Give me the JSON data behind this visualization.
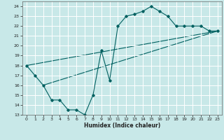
{
  "title": "",
  "xlabel": "Humidex (Indice chaleur)",
  "xlim": [
    -0.5,
    23.5
  ],
  "ylim": [
    13,
    24.5
  ],
  "yticks": [
    13,
    14,
    15,
    16,
    17,
    18,
    19,
    20,
    21,
    22,
    23,
    24
  ],
  "xticks": [
    0,
    1,
    2,
    3,
    4,
    5,
    6,
    7,
    8,
    9,
    10,
    11,
    12,
    13,
    14,
    15,
    16,
    17,
    18,
    19,
    20,
    21,
    22,
    23
  ],
  "bg_color": "#c8e8e8",
  "grid_color": "#ffffff",
  "line_color": "#006060",
  "line1_x": [
    0,
    1,
    2,
    3,
    4,
    5,
    6,
    7,
    8,
    9,
    10,
    11,
    12,
    13,
    14,
    15,
    16,
    17,
    18,
    19,
    20,
    21,
    22,
    23
  ],
  "line1_y": [
    18,
    17,
    16,
    14.5,
    14.5,
    13.5,
    13.5,
    13,
    15,
    19.5,
    16.5,
    22,
    23,
    23.2,
    23.5,
    24,
    23.5,
    23,
    22,
    22,
    22,
    22,
    21.5,
    21.5
  ],
  "line2_x": [
    0,
    23
  ],
  "line2_y": [
    18,
    21.5
  ],
  "line3_x": [
    2,
    23
  ],
  "line3_y": [
    16,
    21.5
  ]
}
